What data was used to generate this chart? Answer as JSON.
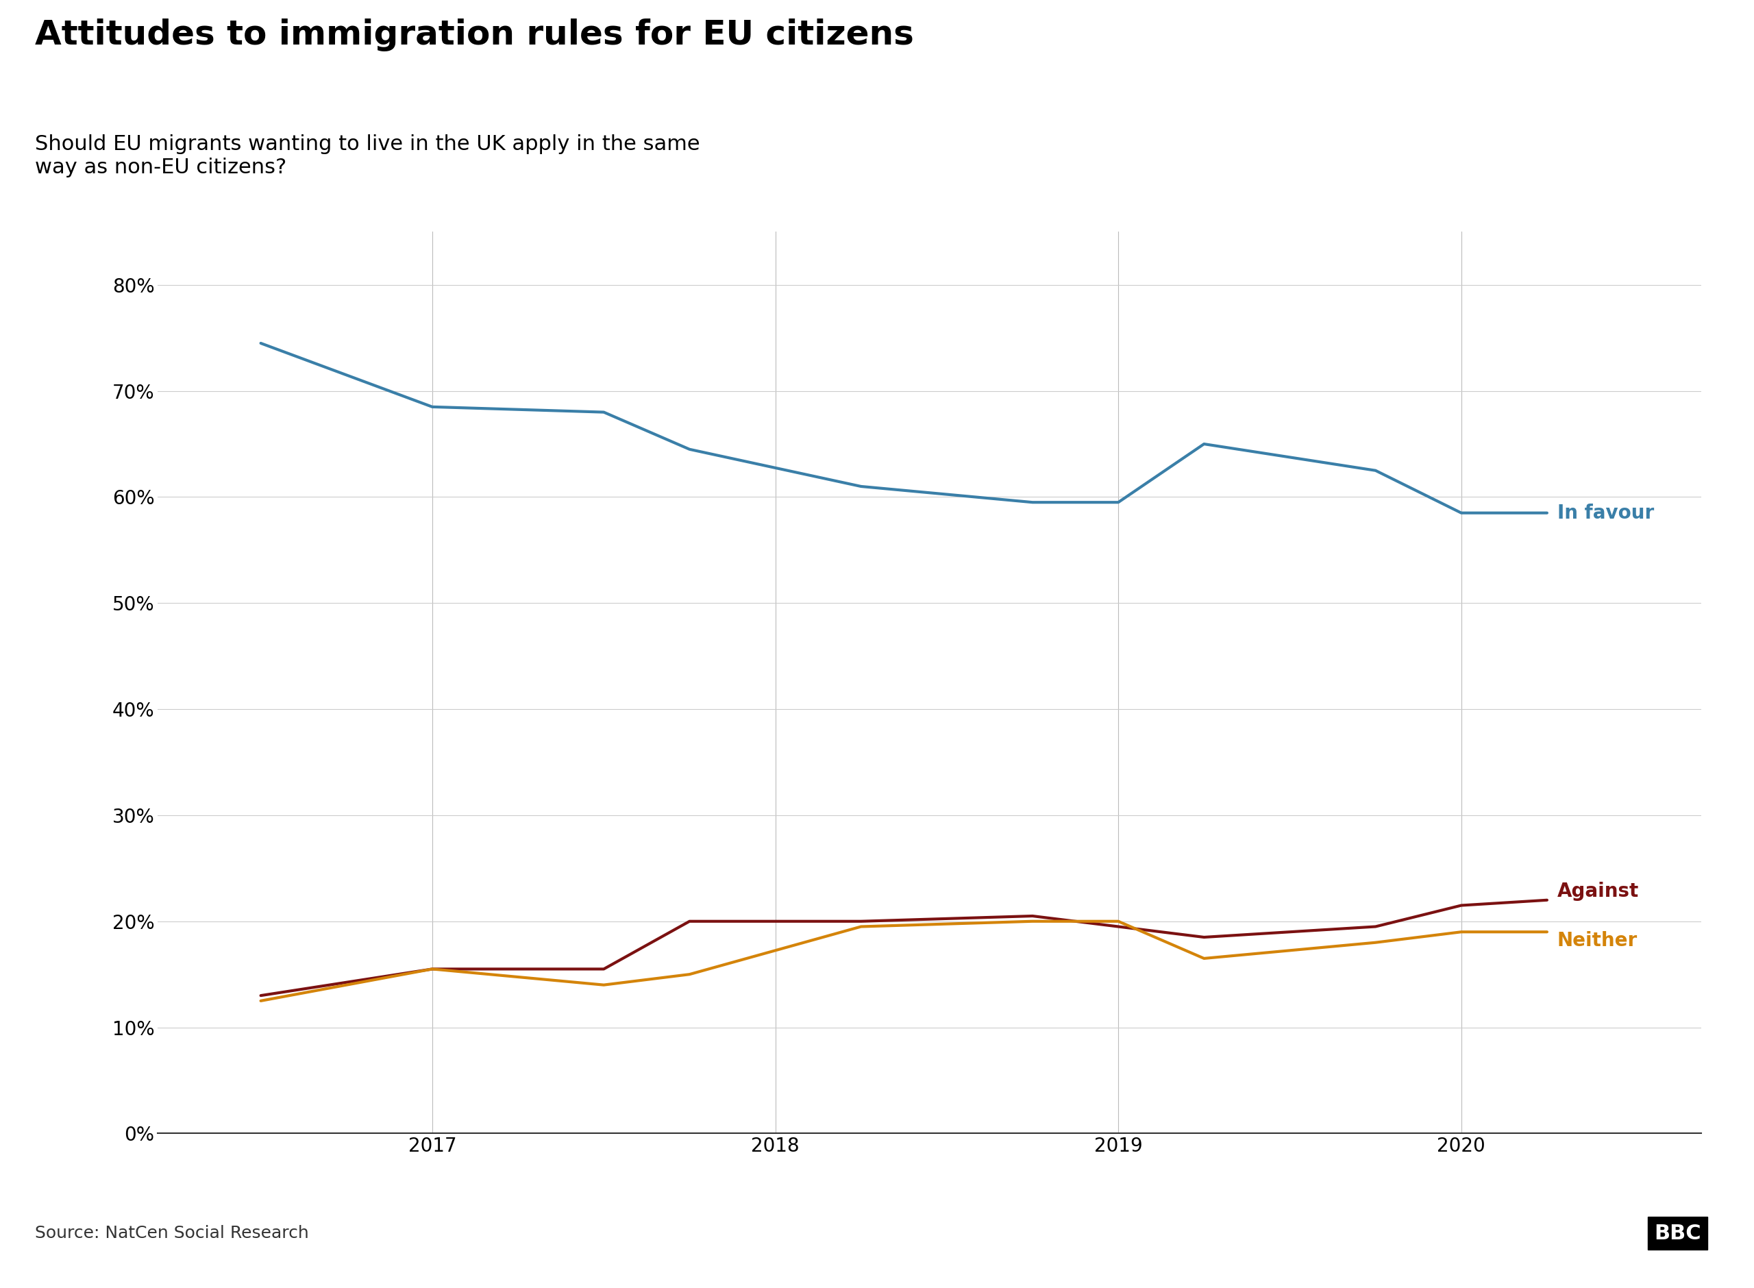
{
  "title": "Attitudes to immigration rules for EU citizens",
  "subtitle": "Should EU migrants wanting to live in the UK apply in the same\nway as non-EU citizens?",
  "source": "Source: NatCen Social Research",
  "x_favour": [
    2016.5,
    2017.0,
    2017.5,
    2017.75,
    2018.25,
    2018.75,
    2019.0,
    2019.25,
    2019.75,
    2020.0,
    2020.25
  ],
  "y_favour": [
    74.5,
    68.5,
    68.0,
    64.5,
    61.0,
    59.5,
    59.5,
    65.0,
    62.5,
    58.5,
    58.5
  ],
  "x_against": [
    2016.5,
    2017.0,
    2017.5,
    2017.75,
    2018.25,
    2018.75,
    2019.0,
    2019.25,
    2019.75,
    2020.0,
    2020.25
  ],
  "y_against": [
    13.0,
    15.5,
    15.5,
    20.0,
    20.0,
    20.5,
    19.5,
    18.5,
    19.5,
    21.5,
    22.0
  ],
  "x_neither": [
    2016.5,
    2017.0,
    2017.5,
    2017.75,
    2018.25,
    2018.75,
    2019.0,
    2019.25,
    2019.75,
    2020.0,
    2020.25
  ],
  "y_neither": [
    12.5,
    15.5,
    14.0,
    15.0,
    19.5,
    20.0,
    20.0,
    16.5,
    18.0,
    19.0,
    19.0
  ],
  "colour_favour": "#3a7fa8",
  "colour_against": "#7b1111",
  "colour_neither": "#d4840a",
  "label_favour": "In favour",
  "label_against": "Against",
  "label_neither": "Neither",
  "ylim": [
    0,
    85
  ],
  "yticks": [
    0,
    10,
    20,
    30,
    40,
    50,
    60,
    70,
    80
  ],
  "xlim": [
    2016.2,
    2020.7
  ],
  "xtick_positions": [
    2017.0,
    2018.0,
    2019.0,
    2020.0
  ],
  "xtick_labels": [
    "2017",
    "2018",
    "2019",
    "2020"
  ],
  "background_color": "#ffffff",
  "footer_color": "#e0e0e0",
  "title_fontsize": 36,
  "subtitle_fontsize": 22,
  "label_fontsize": 20,
  "tick_fontsize": 20,
  "source_fontsize": 18,
  "line_width": 3.0
}
